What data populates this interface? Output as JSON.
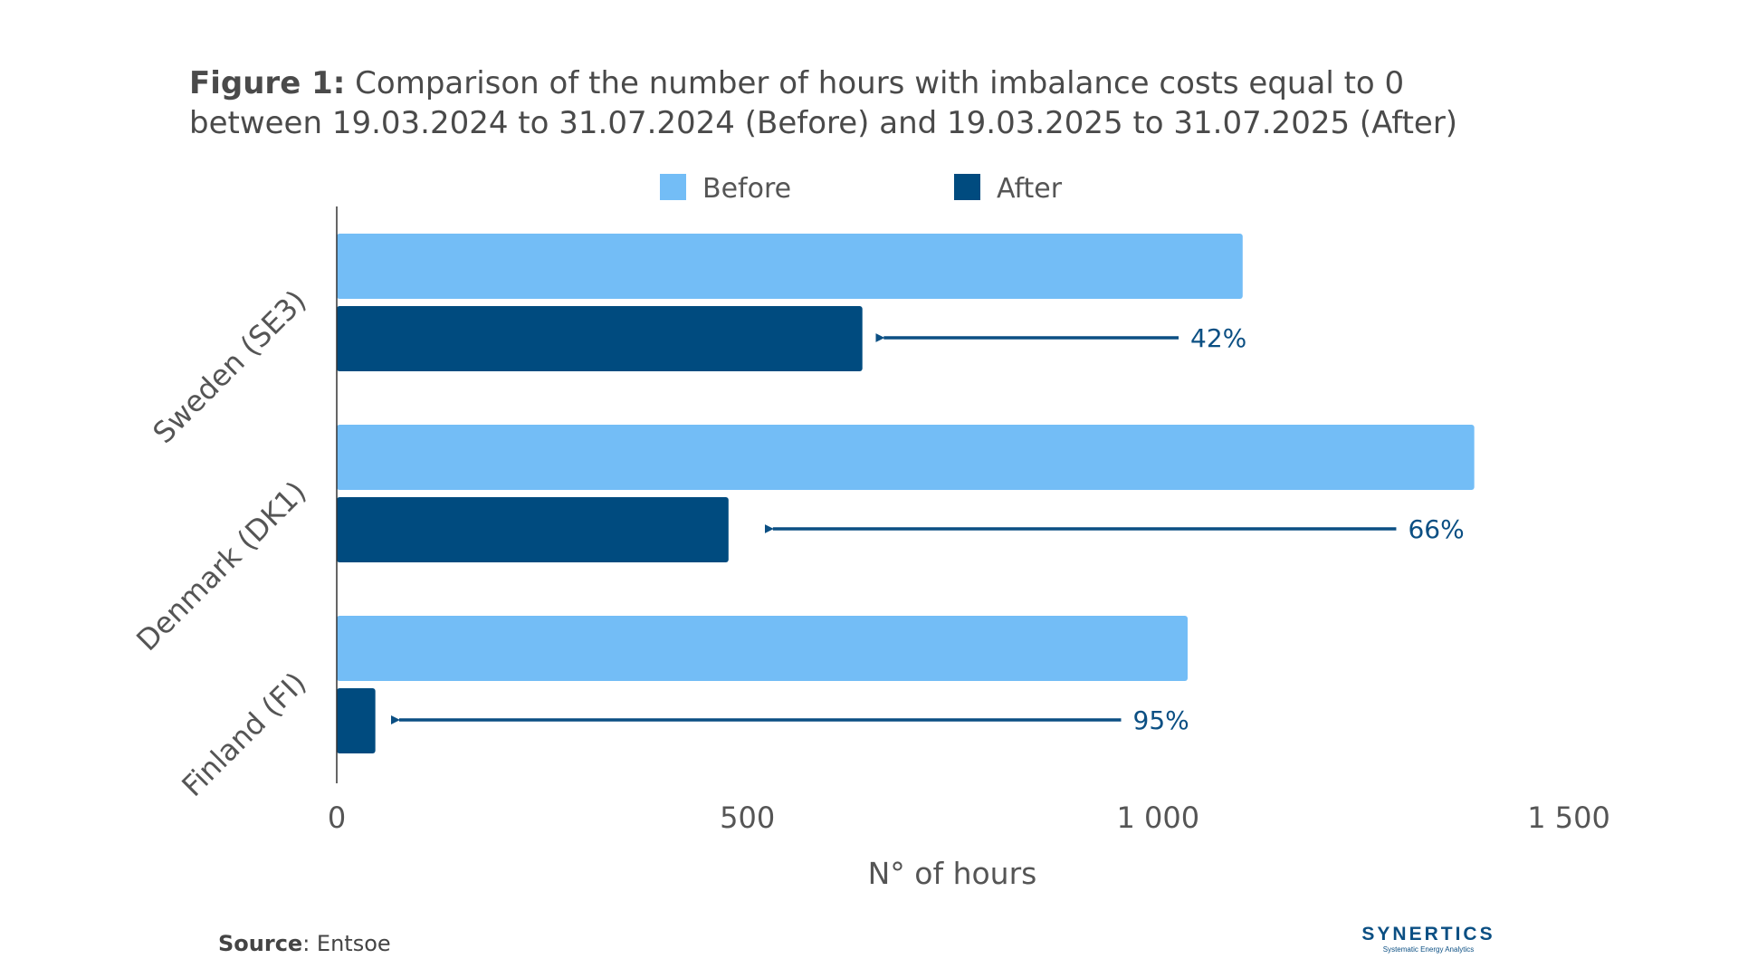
{
  "figure": {
    "label": "Figure 1:",
    "title_line1": "Comparison of the number of hours with imbalance costs equal to 0",
    "title_line2": "between 19.03.2024 to 31.07.2024 (Before) and 19.03.2025 to 31.07.2025 (After)"
  },
  "source": {
    "label": "Source",
    "value": ": Entsoe"
  },
  "logo": {
    "name": "SYNERTICS",
    "tagline": "Systematic Energy Analytics"
  },
  "chart_data": {
    "type": "bar",
    "orientation": "horizontal",
    "categories": [
      "Sweden (SE3)",
      "Denmark (DK1)",
      "Finland (FI)"
    ],
    "series": [
      {
        "name": "Before",
        "color": "#73bdf6",
        "values": [
          1103,
          1385,
          1036
        ]
      },
      {
        "name": "After",
        "color": "#004b7f",
        "values": [
          640,
          477,
          47
        ]
      }
    ],
    "annotations": [
      {
        "category": "Sweden (SE3)",
        "text": "42%",
        "arrow_from": 1025,
        "arrow_to": 655
      },
      {
        "category": "Denmark (DK1)",
        "text": "66%",
        "arrow_from": 1290,
        "arrow_to": 520
      },
      {
        "category": "Finland (FI)",
        "text": "95%",
        "arrow_from": 955,
        "arrow_to": 65
      }
    ],
    "xlabel": "N° of hours",
    "ylabel": "",
    "xlim": [
      0,
      1500
    ],
    "xticks": [
      0,
      500,
      1000,
      1500
    ],
    "xtick_labels": [
      "0",
      "500",
      "1 000",
      "1 500"
    ],
    "grid": false,
    "legend_position": "top-center"
  }
}
